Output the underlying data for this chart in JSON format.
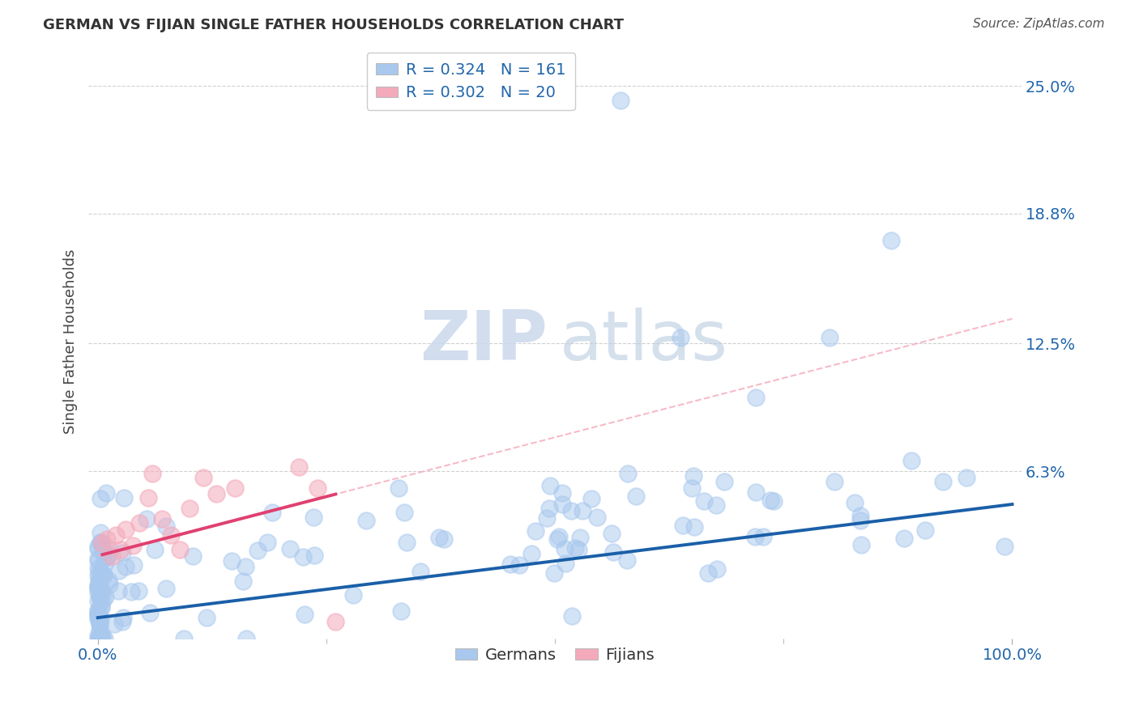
{
  "title": "GERMAN VS FIJIAN SINGLE FATHER HOUSEHOLDS CORRELATION CHART",
  "source": "Source: ZipAtlas.com",
  "ylabel": "Single Father Households",
  "ytick_labels": [
    "",
    "6.3%",
    "12.5%",
    "18.8%",
    "25.0%"
  ],
  "ytick_values": [
    0.0,
    0.063,
    0.125,
    0.188,
    0.25
  ],
  "xlim": [
    -0.01,
    1.01
  ],
  "ylim": [
    -0.018,
    0.27
  ],
  "german_R": 0.324,
  "german_N": 161,
  "fijian_R": 0.302,
  "fijian_N": 20,
  "german_color": "#A8C8EE",
  "fijian_color": "#F4AABB",
  "german_line_color": "#1A5FA8",
  "fijian_line_color": "#E04070",
  "fijian_dashed_color": "#F4AABB",
  "watermark_zip": "ZIP",
  "watermark_atlas": "atlas",
  "background_color": "#ffffff",
  "grid_color": "#cccccc",
  "legend_label_color": "#2166AC",
  "axis_label_color": "#2166AC",
  "title_color": "#333333",
  "source_color": "#555555"
}
